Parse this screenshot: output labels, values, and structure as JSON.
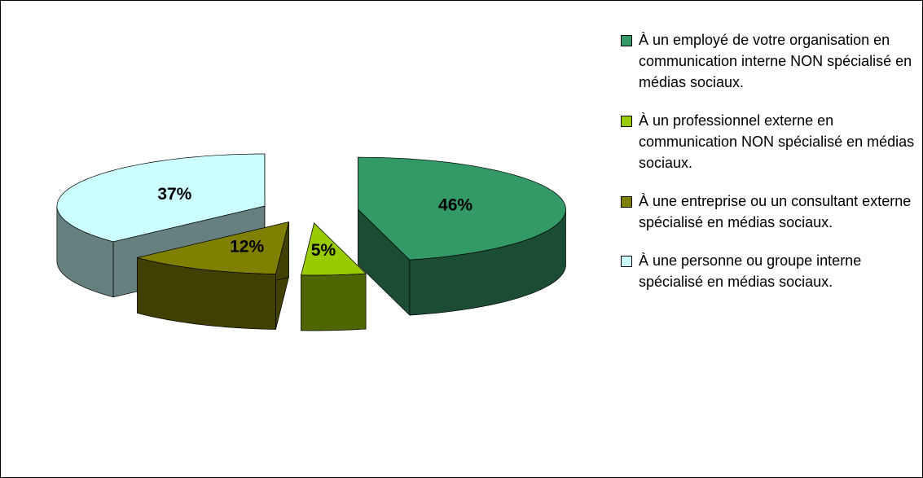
{
  "chart_data": {
    "type": "pie",
    "categories": [
      "À un employé de votre organisation en communication interne NON spécialisé en médias sociaux.",
      "À un professionnel externe en communication NON spécialisé en médias sociaux.",
      "À une entreprise ou un consultant externe spécialisé en médias sociaux.",
      "À une personne ou groupe interne spécialisé en médias sociaux."
    ],
    "values": [
      46,
      5,
      12,
      37
    ],
    "value_labels": [
      "46%",
      "5%",
      "12%",
      "37%"
    ],
    "colors": [
      "#339966",
      "#99cc00",
      "#808000",
      "#ccffff"
    ],
    "legend": "right"
  }
}
